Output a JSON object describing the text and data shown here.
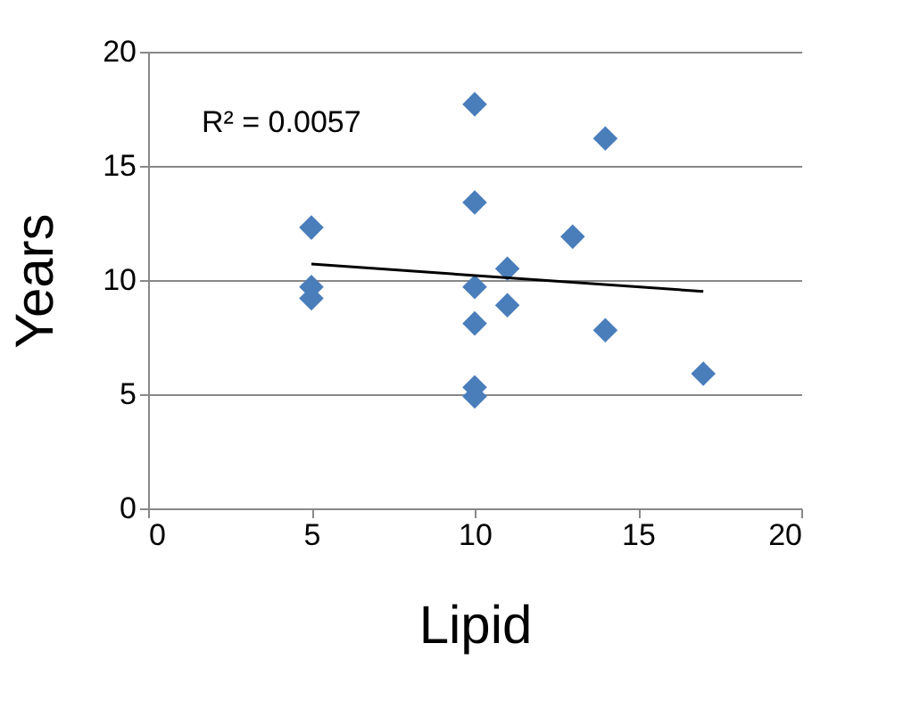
{
  "chart_data": {
    "type": "scatter",
    "xlabel": "Lipid",
    "ylabel": "Years",
    "xlim": [
      0,
      20
    ],
    "xticks": [
      0,
      5,
      10,
      15,
      20
    ],
    "ylim": [
      0,
      20
    ],
    "yticks": [
      0,
      5,
      10,
      15,
      20
    ],
    "grid": "y",
    "annotations": [
      "R² = 0.0057"
    ],
    "series": [
      {
        "marker": "diamond",
        "color": "#4a7ebb",
        "x": [
          5,
          5,
          5,
          10,
          10,
          10,
          10,
          10,
          10,
          11,
          11,
          13,
          14,
          14,
          17
        ],
        "values": [
          12.3,
          9.7,
          9.2,
          17.7,
          13.4,
          9.7,
          8.1,
          5.3,
          4.9,
          10.5,
          8.9,
          11.9,
          16.2,
          7.8,
          5.9
        ]
      },
      {
        "type": "line",
        "marker": "none",
        "color": "#000000",
        "x": [
          5,
          17
        ],
        "values": [
          10.7,
          9.5
        ]
      }
    ]
  }
}
